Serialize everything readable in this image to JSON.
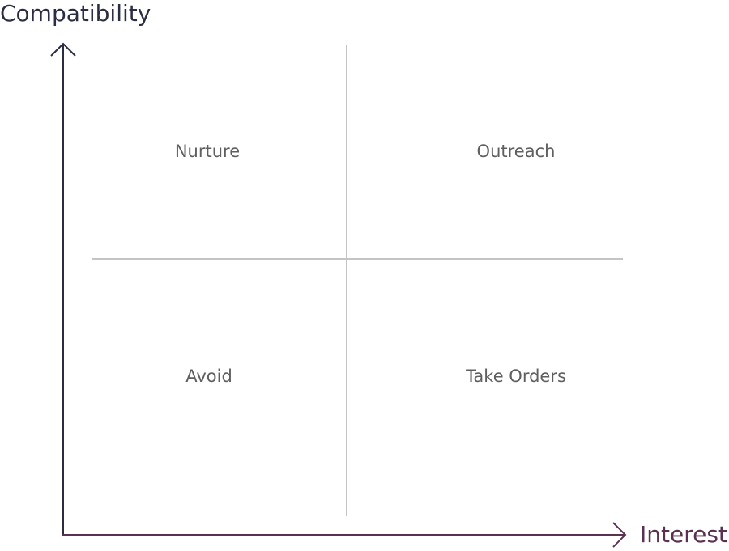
{
  "axes": {
    "y_label": "Compatibility",
    "x_label": "Interest"
  },
  "quadrants": {
    "top_left": "Nurture",
    "top_right": "Outreach",
    "bottom_left": "Avoid",
    "bottom_right": "Take Orders"
  }
}
